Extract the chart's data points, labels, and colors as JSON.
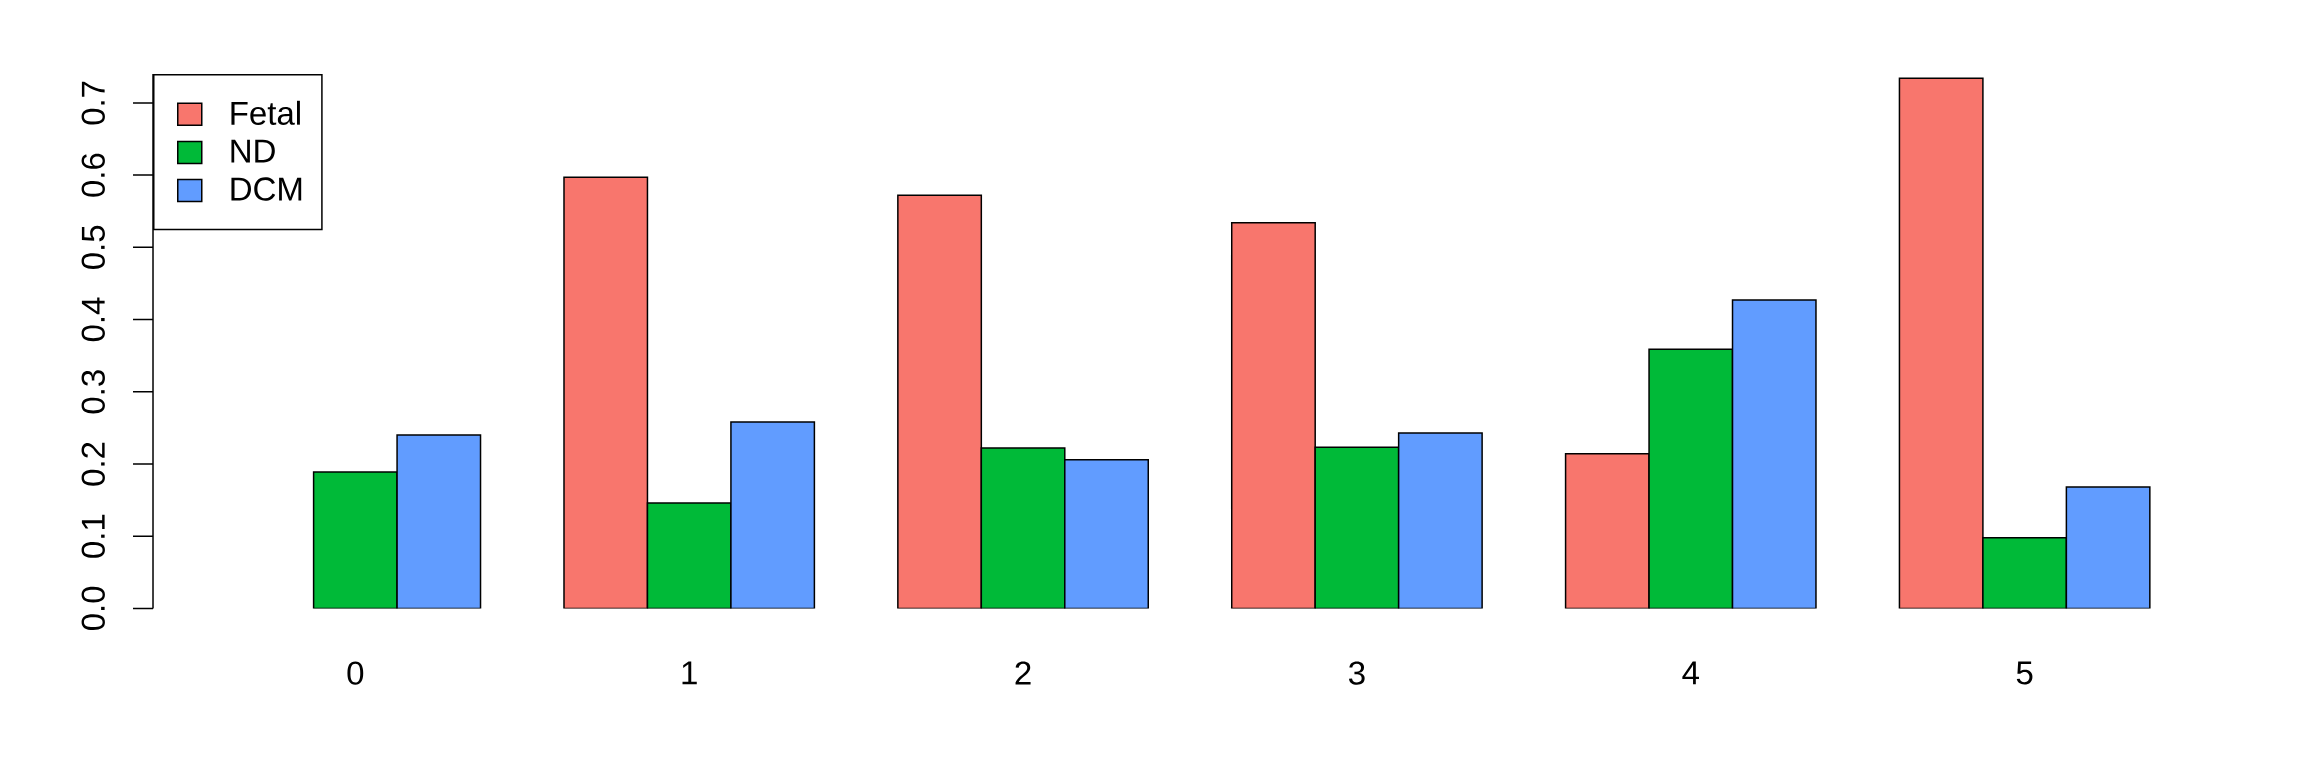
{
  "chart_data": {
    "type": "bar",
    "categories": [
      "0",
      "1",
      "2",
      "3",
      "4",
      "5"
    ],
    "series": [
      {
        "name": "Fetal",
        "color": "#f8766d",
        "values": [
          null,
          0.597,
          0.572,
          0.534,
          0.214,
          0.734
        ]
      },
      {
        "name": "ND",
        "color": "#00ba38",
        "values": [
          0.189,
          0.146,
          0.222,
          0.223,
          0.359,
          0.098
        ]
      },
      {
        "name": "DCM",
        "color": "#619cff",
        "values": [
          0.24,
          0.258,
          0.206,
          0.243,
          0.427,
          0.168
        ]
      }
    ],
    "ylim": [
      0,
      0.74
    ],
    "yticks": [
      {
        "value": 0,
        "label": "0.0"
      },
      0.1,
      0.2,
      0.3,
      0.4,
      0.5,
      0.6,
      0.7
    ],
    "legend": "top left"
  }
}
